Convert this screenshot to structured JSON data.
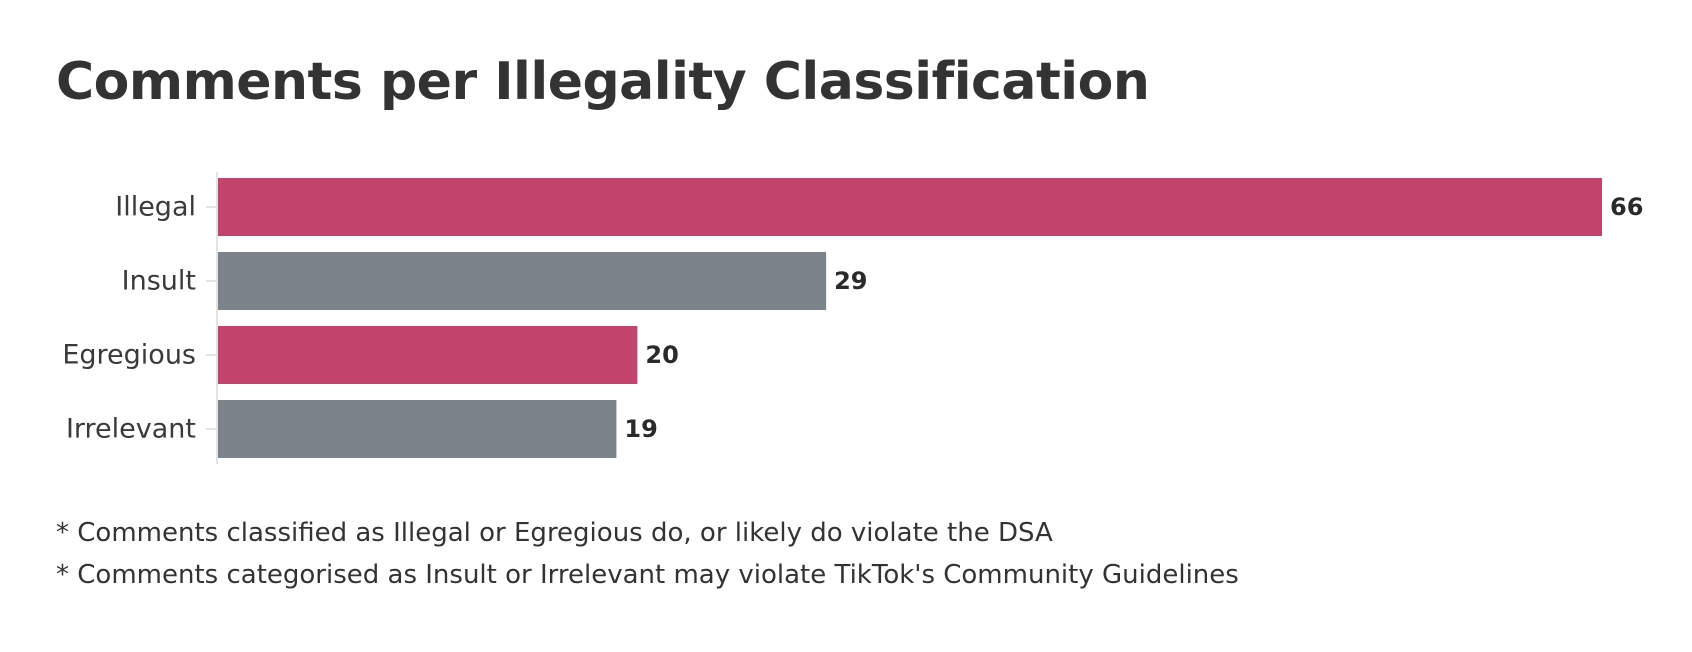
{
  "chart_data": {
    "type": "bar",
    "orientation": "horizontal",
    "title": "Comments per Illegality Classification",
    "categories": [
      "Illegal",
      "Insult",
      "Egregious",
      "Irrelevant"
    ],
    "values": [
      66,
      29,
      20,
      19
    ],
    "bar_colors": [
      "#c2446c",
      "#7d838b",
      "#c2446c",
      "#7d838b"
    ],
    "xlim": [
      0,
      66
    ],
    "grid": false,
    "legend": "none",
    "data_labels": true
  },
  "footnotes": [
    "* Comments classified as Illegal or Egregious do, or likely do violate the DSA",
    "* Comments categorised as Insult or Irrelevant may violate TikTok's Community Guidelines"
  ]
}
